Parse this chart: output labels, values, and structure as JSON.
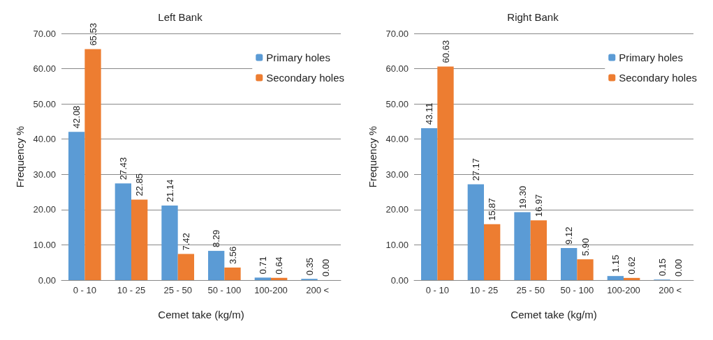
{
  "chart_data": [
    {
      "type": "bar",
      "title": "Left Bank",
      "xlabel": "Cemet take (kg/m)",
      "ylabel": "Frequency %",
      "categories": [
        "0 - 10",
        "10 - 25",
        "25 - 50",
        "50 - 100",
        "100-200",
        "200 <"
      ],
      "series": [
        {
          "name": "Primary holes",
          "color": "#5b9bd5",
          "values": [
            42.08,
            27.43,
            21.14,
            8.29,
            0.71,
            0.35
          ],
          "value_labels": [
            "42.08",
            "27.43",
            "21.14",
            "8.29",
            "0.71",
            "0.35"
          ]
        },
        {
          "name": "Secondary holes",
          "color": "#ed7d31",
          "values": [
            65.53,
            22.85,
            7.42,
            3.56,
            0.64,
            0.0
          ],
          "value_labels": [
            "65.53",
            "22.85",
            "7.42",
            "3.56",
            "0.64",
            "0.00"
          ]
        }
      ],
      "ylim": [
        0,
        70
      ],
      "yticks": [
        {
          "value": 0,
          "label": "0.00"
        },
        {
          "value": 10,
          "label": "10.00"
        },
        {
          "value": 20,
          "label": "20.00"
        },
        {
          "value": 30,
          "label": "30.00"
        },
        {
          "value": 40,
          "label": "40.00"
        },
        {
          "value": 50,
          "label": "50.00"
        },
        {
          "value": 60,
          "label": "60.00"
        },
        {
          "value": 70,
          "label": "70.00"
        }
      ],
      "grid": "y",
      "legend": "top right"
    },
    {
      "type": "bar",
      "title": "Right Bank",
      "xlabel": "Cemet take (kg/m)",
      "ylabel": "Frequency %",
      "categories": [
        "0 - 10",
        "10 - 25",
        "25 - 50",
        "50 - 100",
        "100-200",
        "200 <"
      ],
      "series": [
        {
          "name": "Primary holes",
          "color": "#5b9bd5",
          "values": [
            43.11,
            27.17,
            19.3,
            9.12,
            1.15,
            0.15
          ],
          "value_labels": [
            "43.11",
            "27.17",
            "19.30",
            "9.12",
            "1.15",
            "0.15"
          ]
        },
        {
          "name": "Secondary holes",
          "color": "#ed7d31",
          "values": [
            60.63,
            15.87,
            16.97,
            5.9,
            0.62,
            0.0
          ],
          "value_labels": [
            "60.63",
            "15.87",
            "16.97",
            "5.90",
            "0.62",
            "0.00"
          ]
        }
      ],
      "ylim": [
        0,
        70
      ],
      "yticks": [
        {
          "value": 0,
          "label": "0.00"
        },
        {
          "value": 10,
          "label": "10.00"
        },
        {
          "value": 20,
          "label": "20.00"
        },
        {
          "value": 30,
          "label": "30.00"
        },
        {
          "value": 40,
          "label": "40.00"
        },
        {
          "value": 50,
          "label": "50.00"
        },
        {
          "value": 60,
          "label": "60.00"
        },
        {
          "value": 70,
          "label": "70.00"
        }
      ],
      "grid": "y",
      "legend": "top right"
    }
  ]
}
